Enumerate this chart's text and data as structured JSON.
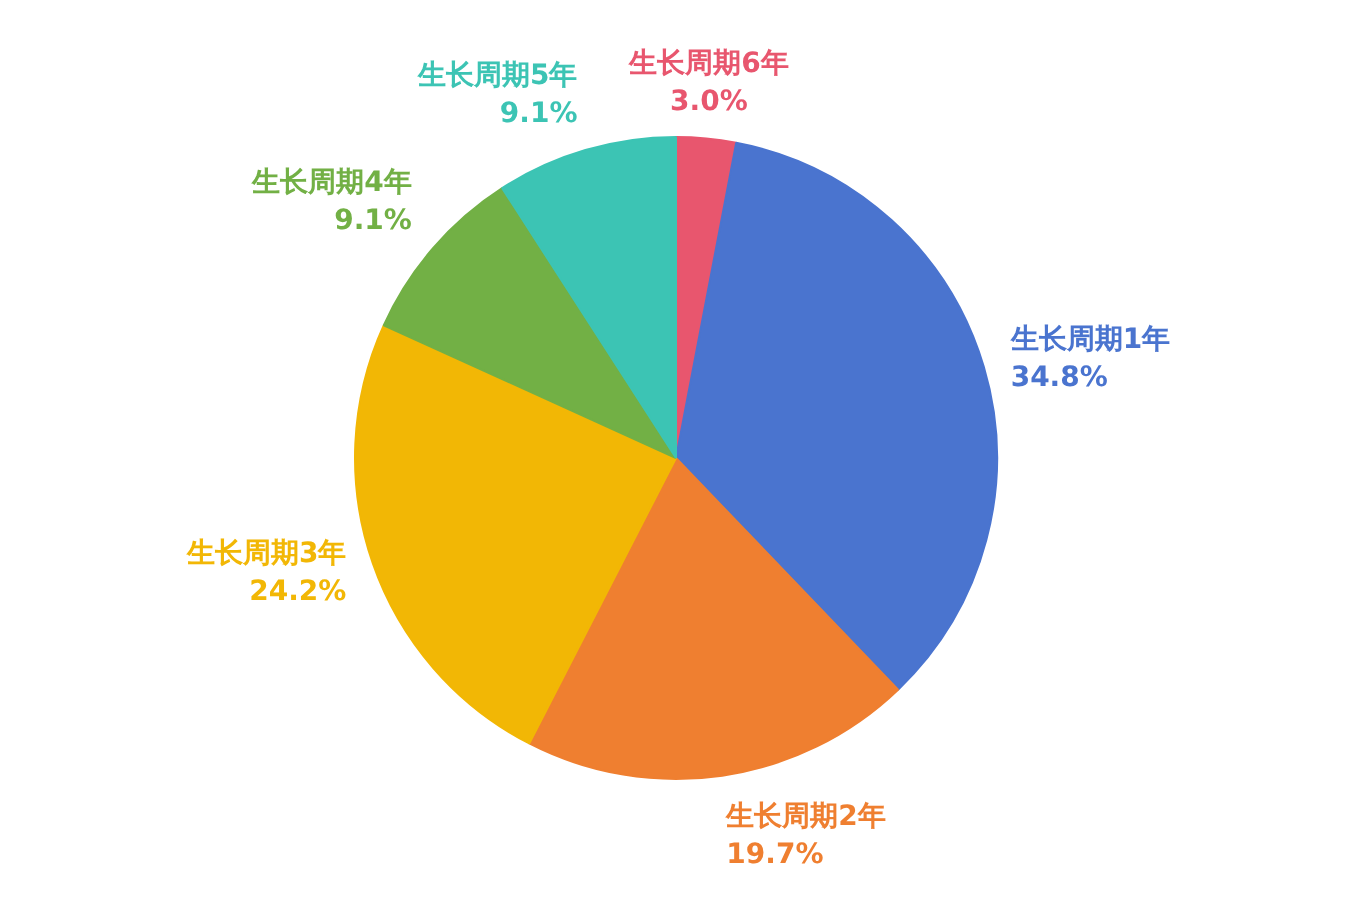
{
  "chart_data": {
    "type": "pie",
    "categories": [
      "生长周期6年",
      "生长周期1年",
      "生长周期2年",
      "生长周期3年",
      "生长周期4年",
      "生长周期5年"
    ],
    "values": [
      3.0,
      34.8,
      19.7,
      24.2,
      9.1,
      9.1
    ],
    "value_labels": [
      "3.0%",
      "34.8%",
      "19.7%",
      "24.2%",
      "9.1%",
      "9.1%"
    ],
    "colors": [
      "#e8566e",
      "#4a74cf",
      "#ef7f30",
      "#f2b705",
      "#72b045",
      "#3cc4b4"
    ],
    "legend": false
  }
}
